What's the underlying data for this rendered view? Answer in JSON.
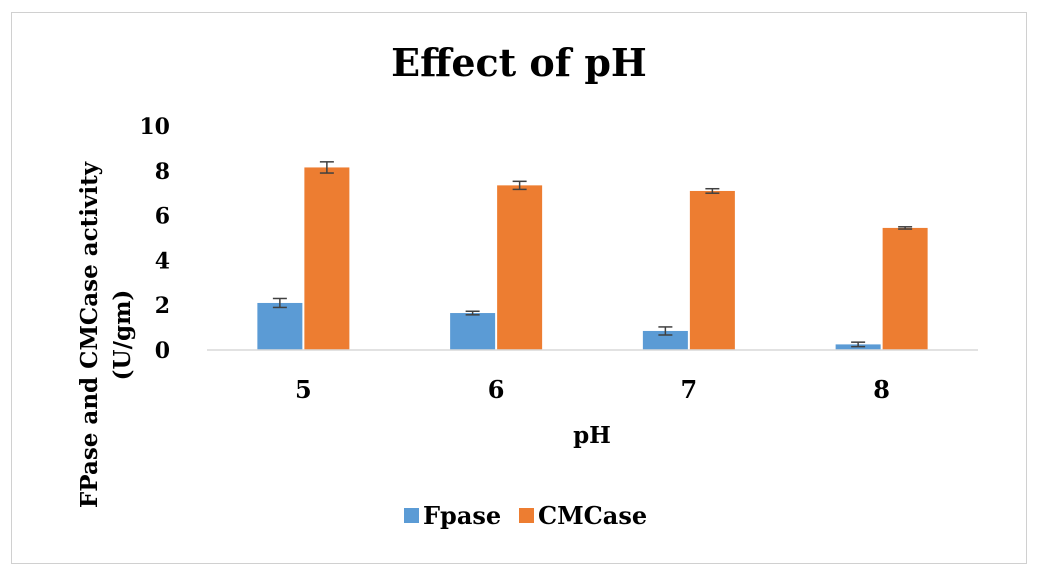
{
  "chart_data": {
    "type": "bar",
    "title": "Effect of pH",
    "xlabel": "pH",
    "ylabel_line1": "FPase and CMCase activity",
    "ylabel_line2": "(U/gm)",
    "categories": [
      "5",
      "6",
      "7",
      "8"
    ],
    "ylim": [
      0,
      10
    ],
    "yticks": [
      "0",
      "2",
      "4",
      "6",
      "8",
      "10"
    ],
    "grid": false,
    "legend_position": "bottom",
    "series": [
      {
        "name": "Fpase",
        "color": "#5b9bd5",
        "values": [
          2.1,
          1.65,
          0.85,
          0.25
        ],
        "errors": [
          0.2,
          0.08,
          0.18,
          0.1
        ]
      },
      {
        "name": "CMCase",
        "color": "#ed7d31",
        "values": [
          8.15,
          7.35,
          7.1,
          5.45
        ],
        "errors": [
          0.25,
          0.18,
          0.1,
          0.05
        ]
      }
    ]
  }
}
